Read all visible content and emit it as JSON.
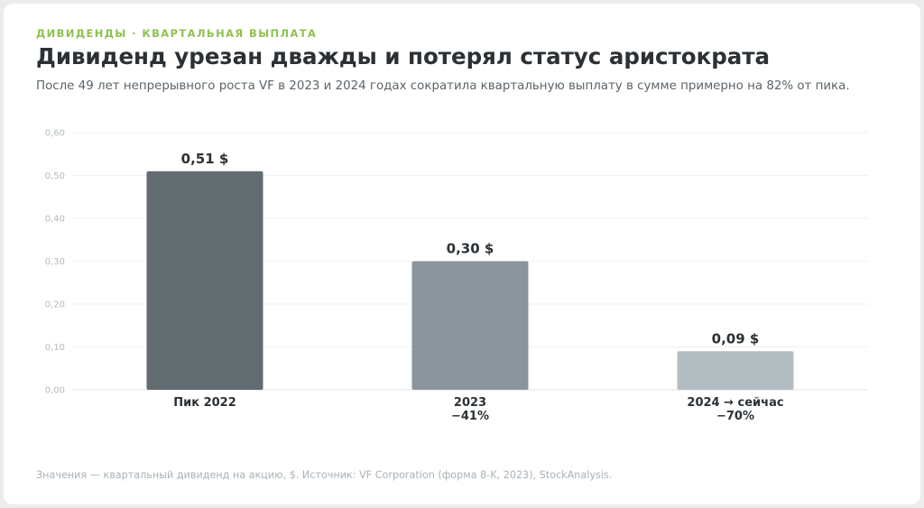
{
  "header": {
    "kicker": "ДИВИДЕНДЫ · КВАРТАЛЬНАЯ ВЫПЛАТА",
    "title": "Дивиденд урезан дважды и потерял статус аристократа",
    "subtitle": "После 49 лет непрерывного роста VF в 2023 и 2024 годах сократила квартальную выплату в сумме примерно на 82% от пика."
  },
  "footnote": "Значения — квартальный дивиденд на акцию, $. Источник: VF Corporation (форма 8-K, 2023), StockAnalysis.",
  "colors": {
    "accent": "#8dc24f",
    "bar_peak": "#626b70",
    "bar_2023": "#8b959b",
    "bar_2024": "#b4bdc2",
    "grid": "#eef1f2"
  },
  "chart_data": {
    "type": "bar",
    "categories": [
      "Пик 2022",
      "2023",
      "2024 → сейчас"
    ],
    "category_sublabels": [
      "",
      "−41%",
      "−70%"
    ],
    "values": [
      0.51,
      0.3,
      0.09
    ],
    "value_labels": [
      "0,51 $",
      "0,30 $",
      "0,09 $"
    ],
    "bar_colors": [
      "#626b70",
      "#8b959b",
      "#b4bdc2"
    ],
    "ylim": [
      0,
      0.6
    ],
    "yticks": [
      0,
      0.1,
      0.2,
      0.3,
      0.4,
      0.5,
      0.6
    ],
    "ytick_labels": [
      "0,00",
      "0,10",
      "0,20",
      "0,30",
      "0,40",
      "0,50",
      "0,60"
    ],
    "title": "Дивиденд урезан дважды и потерял статус аристократа",
    "xlabel": "",
    "ylabel": "",
    "grid": true,
    "legend": "none"
  }
}
